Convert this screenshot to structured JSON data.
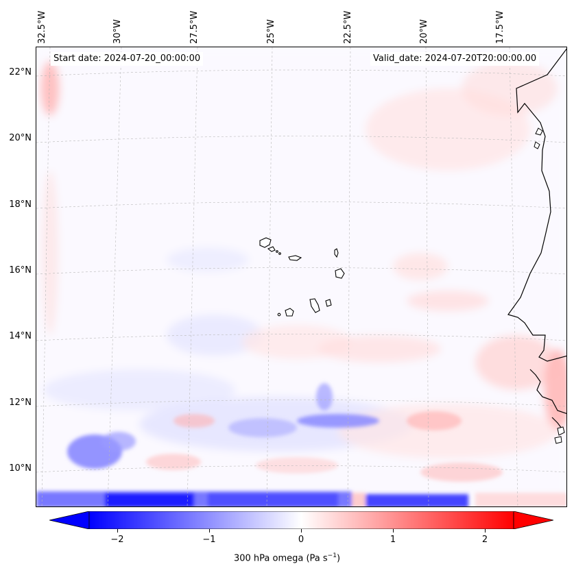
{
  "map": {
    "title_left": "Start date: 2024-07-20_00:00:00",
    "title_right": "Valid_date: 2024-07-20T20:00:00.00",
    "lon_labels": [
      "32.5°W",
      "30°W",
      "27.5°W",
      "25°W",
      "22.5°W",
      "20°W",
      "17.5°W"
    ],
    "lat_labels": [
      "22°N",
      "20°N",
      "18°N",
      "16°N",
      "14°N",
      "12°N",
      "10°N"
    ],
    "variable": "300 hPa omega",
    "units": "Pa s⁻¹",
    "colormap": "bwr",
    "value_range": [
      -2.5,
      2.5
    ]
  },
  "colorbar": {
    "ticks": [
      "−2",
      "−1",
      "0",
      "1",
      "2"
    ],
    "label_main": "300 hPa omega (Pa s",
    "label_exp": "−1",
    "label_close": ")",
    "colors": {
      "negative": "#0000ff",
      "zero": "#ffffff",
      "positive": "#ff0000"
    }
  }
}
